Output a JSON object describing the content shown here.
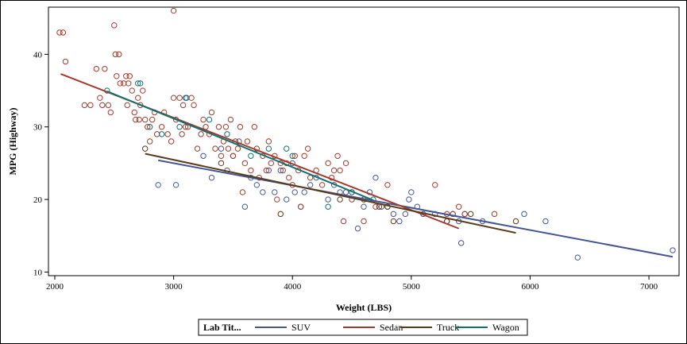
{
  "chart_data": {
    "type": "scatter",
    "title": "",
    "xlabel": "Weight (LBS)",
    "ylabel": "MPG (Highway)",
    "xlim": [
      2000,
      7200
    ],
    "ylim": [
      9.5,
      46.5
    ],
    "xticks": [
      2000,
      3000,
      4000,
      5000,
      6000,
      7000
    ],
    "yticks": [
      10,
      20,
      30,
      40
    ],
    "legend": {
      "title": "Lab Tit...",
      "placement": "bottom",
      "entries": [
        "SUV",
        "Sedan",
        "Truck",
        "Wagon"
      ]
    },
    "series": [
      {
        "name": "SUV",
        "color": "#445694",
        "fit": [
          [
            2870,
            25.4
          ],
          [
            7200,
            12.1
          ]
        ],
        "points": [
          [
            2870,
            22
          ],
          [
            3020,
            22
          ],
          [
            3110,
            34
          ],
          [
            3250,
            26
          ],
          [
            3320,
            23
          ],
          [
            3400,
            27
          ],
          [
            3450,
            24
          ],
          [
            3500,
            26
          ],
          [
            3550,
            28
          ],
          [
            3600,
            19
          ],
          [
            3650,
            23
          ],
          [
            3700,
            22
          ],
          [
            3750,
            21
          ],
          [
            3800,
            24
          ],
          [
            3850,
            21
          ],
          [
            3900,
            24
          ],
          [
            3950,
            20
          ],
          [
            4000,
            25
          ],
          [
            4020,
            21
          ],
          [
            4070,
            19
          ],
          [
            4100,
            21
          ],
          [
            4150,
            22
          ],
          [
            4200,
            23
          ],
          [
            4300,
            20
          ],
          [
            4350,
            22
          ],
          [
            4400,
            21
          ],
          [
            4450,
            21
          ],
          [
            4500,
            21
          ],
          [
            4550,
            16
          ],
          [
            4600,
            19
          ],
          [
            4650,
            21
          ],
          [
            4700,
            23
          ],
          [
            4750,
            19
          ],
          [
            4800,
            19
          ],
          [
            4850,
            18
          ],
          [
            4900,
            17
          ],
          [
            4950,
            18
          ],
          [
            4980,
            20
          ],
          [
            5000,
            21
          ],
          [
            5050,
            19
          ],
          [
            5100,
            18
          ],
          [
            5200,
            18
          ],
          [
            5300,
            17
          ],
          [
            5350,
            18
          ],
          [
            5400,
            17
          ],
          [
            5420,
            14
          ],
          [
            5450,
            18
          ],
          [
            5600,
            17
          ],
          [
            5950,
            18
          ],
          [
            6130,
            17
          ],
          [
            6400,
            12
          ],
          [
            7200,
            13
          ]
        ]
      },
      {
        "name": "Sedan",
        "color": "#a23a2e",
        "fit": [
          [
            2050,
            37.3
          ],
          [
            5400,
            16.0
          ]
        ],
        "points": [
          [
            2040,
            43
          ],
          [
            2070,
            43
          ],
          [
            2090,
            39
          ],
          [
            2250,
            33
          ],
          [
            2300,
            33
          ],
          [
            2350,
            38
          ],
          [
            2380,
            34
          ],
          [
            2400,
            33
          ],
          [
            2420,
            38
          ],
          [
            2450,
            33
          ],
          [
            2470,
            32
          ],
          [
            2500,
            44
          ],
          [
            2510,
            40
          ],
          [
            2520,
            37
          ],
          [
            2540,
            40
          ],
          [
            2550,
            36
          ],
          [
            2580,
            36
          ],
          [
            2600,
            37
          ],
          [
            2610,
            33
          ],
          [
            2620,
            36
          ],
          [
            2630,
            37
          ],
          [
            2650,
            35
          ],
          [
            2670,
            32
          ],
          [
            2680,
            31
          ],
          [
            2700,
            34
          ],
          [
            2710,
            31
          ],
          [
            2720,
            33
          ],
          [
            2740,
            35
          ],
          [
            2760,
            31
          ],
          [
            2780,
            30
          ],
          [
            2800,
            28
          ],
          [
            2820,
            31
          ],
          [
            2840,
            32
          ],
          [
            2860,
            29
          ],
          [
            2900,
            30
          ],
          [
            2920,
            32
          ],
          [
            2950,
            29
          ],
          [
            2980,
            28
          ],
          [
            3000,
            46
          ],
          [
            3000,
            34
          ],
          [
            3020,
            31
          ],
          [
            3050,
            34
          ],
          [
            3070,
            29
          ],
          [
            3080,
            33
          ],
          [
            3100,
            30
          ],
          [
            3120,
            30
          ],
          [
            3150,
            34
          ],
          [
            3170,
            33
          ],
          [
            3200,
            27
          ],
          [
            3230,
            29
          ],
          [
            3250,
            31
          ],
          [
            3270,
            30
          ],
          [
            3300,
            29
          ],
          [
            3320,
            32
          ],
          [
            3350,
            27
          ],
          [
            3380,
            30
          ],
          [
            3400,
            26
          ],
          [
            3420,
            28
          ],
          [
            3440,
            30
          ],
          [
            3460,
            27
          ],
          [
            3480,
            31
          ],
          [
            3500,
            26
          ],
          [
            3520,
            28
          ],
          [
            3540,
            27
          ],
          [
            3560,
            30
          ],
          [
            3580,
            21
          ],
          [
            3600,
            25
          ],
          [
            3620,
            28
          ],
          [
            3650,
            24
          ],
          [
            3680,
            30
          ],
          [
            3700,
            27
          ],
          [
            3720,
            23
          ],
          [
            3750,
            26
          ],
          [
            3780,
            24
          ],
          [
            3800,
            28
          ],
          [
            3820,
            25
          ],
          [
            3850,
            26
          ],
          [
            3870,
            20
          ],
          [
            3900,
            25
          ],
          [
            3920,
            24
          ],
          [
            3950,
            25
          ],
          [
            3970,
            23
          ],
          [
            4000,
            22
          ],
          [
            4020,
            26
          ],
          [
            4050,
            24
          ],
          [
            4070,
            19
          ],
          [
            4100,
            26
          ],
          [
            4130,
            27
          ],
          [
            4150,
            23
          ],
          [
            4200,
            24
          ],
          [
            4250,
            22
          ],
          [
            4300,
            25
          ],
          [
            4330,
            23
          ],
          [
            4350,
            24
          ],
          [
            4380,
            26
          ],
          [
            4400,
            24
          ],
          [
            4430,
            17
          ],
          [
            4450,
            25
          ],
          [
            4500,
            20
          ],
          [
            4600,
            17
          ],
          [
            4700,
            19
          ],
          [
            4800,
            22
          ],
          [
            5200,
            22
          ],
          [
            5300,
            18
          ],
          [
            5350,
            18
          ],
          [
            5400,
            19
          ],
          [
            5450,
            18
          ],
          [
            5700,
            18
          ]
        ]
      },
      {
        "name": "Truck",
        "color": "#5a3b1b",
        "fit": [
          [
            2760,
            26.3
          ],
          [
            5880,
            15.4
          ]
        ],
        "points": [
          [
            2760,
            27
          ],
          [
            3400,
            25
          ],
          [
            3900,
            18
          ],
          [
            4400,
            20
          ],
          [
            4600,
            20
          ],
          [
            4730,
            19
          ],
          [
            4800,
            19
          ],
          [
            4850,
            17
          ],
          [
            5300,
            17
          ],
          [
            5500,
            18
          ],
          [
            5880,
            17
          ]
        ]
      },
      {
        "name": "Wagon",
        "color": "#14706d",
        "fit": [
          [
            2440,
            34.9
          ],
          [
            4680,
            19.9
          ]
        ],
        "points": [
          [
            2440,
            35
          ],
          [
            2700,
            36
          ],
          [
            2720,
            36
          ],
          [
            2800,
            30
          ],
          [
            2900,
            29
          ],
          [
            3050,
            30
          ],
          [
            3100,
            34
          ],
          [
            3300,
            31
          ],
          [
            3450,
            29
          ],
          [
            3650,
            26
          ],
          [
            3800,
            27
          ],
          [
            3950,
            27
          ],
          [
            4000,
            26
          ],
          [
            4300,
            19
          ],
          [
            4500,
            21
          ],
          [
            4680,
            20
          ]
        ]
      }
    ]
  }
}
